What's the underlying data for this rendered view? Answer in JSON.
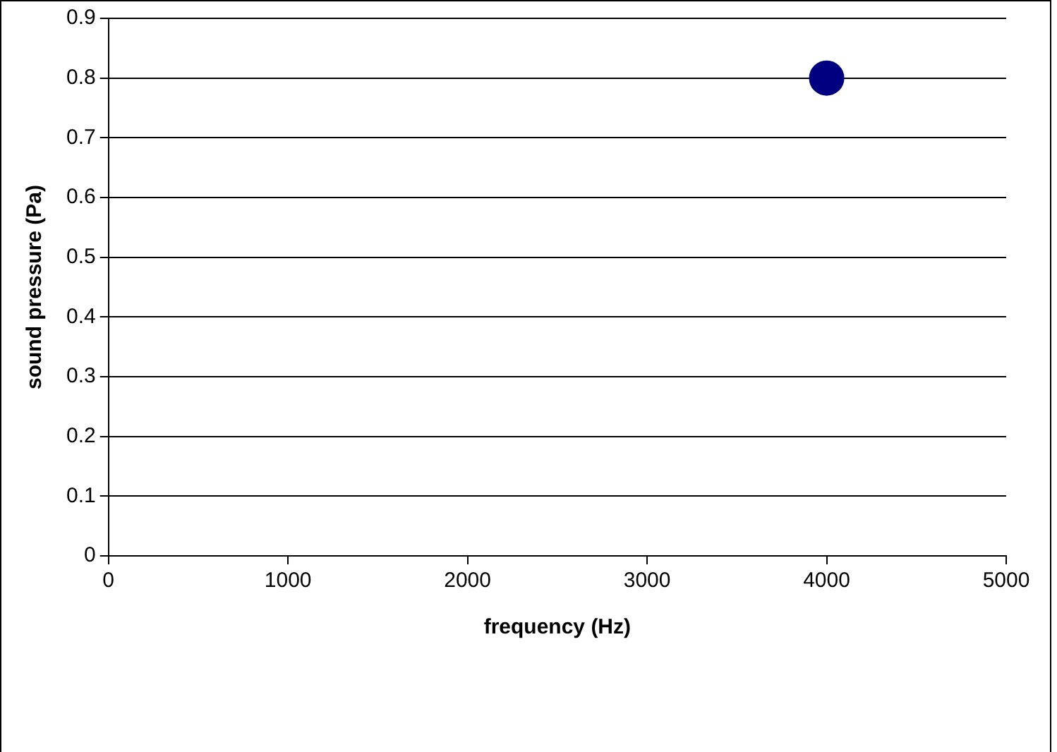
{
  "chart_data": {
    "type": "scatter",
    "xlabel": "frequency (Hz)",
    "ylabel": "sound pressure (Pa)",
    "x": [
      4000
    ],
    "series": [
      {
        "color": "#000080",
        "values": [
          0.8
        ]
      }
    ],
    "xlim": [
      0,
      5000
    ],
    "xticks": [
      0,
      1000,
      2000,
      3000,
      4000,
      5000
    ],
    "ylim": [
      0,
      0.9
    ],
    "yticks": [
      0,
      0.1,
      0.2,
      0.3,
      0.4,
      0.5,
      0.6,
      0.7,
      0.8,
      0.9
    ],
    "grid": "y",
    "legend": false,
    "marker": "circle"
  }
}
